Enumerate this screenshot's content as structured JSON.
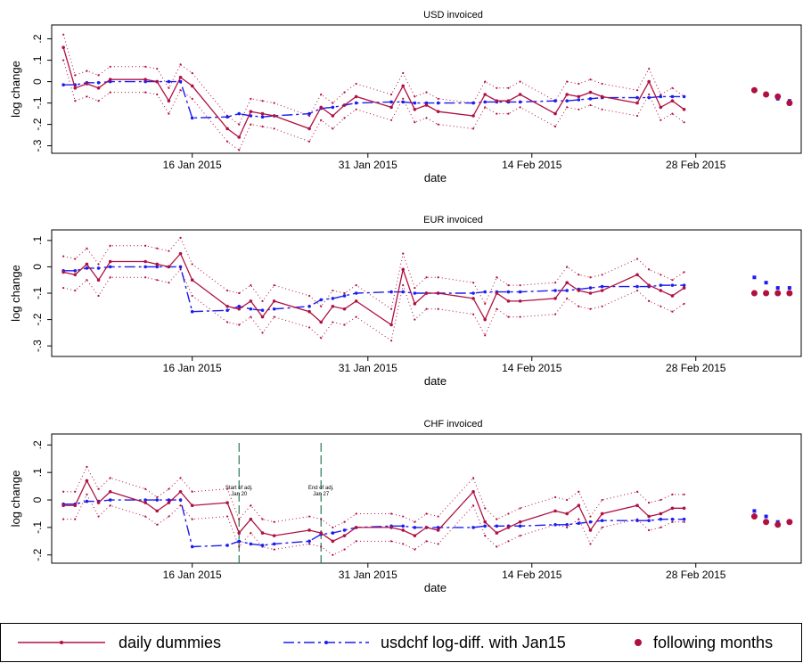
{
  "chart_data": {
    "type": "line",
    "xlabel": "date",
    "ylabel": "log change",
    "x": [
      "2015-01-05",
      "2015-01-06",
      "2015-01-07",
      "2015-01-08",
      "2015-01-09",
      "2015-01-12",
      "2015-01-13",
      "2015-01-14",
      "2015-01-15",
      "2015-01-16",
      "2015-01-19",
      "2015-01-20",
      "2015-01-21",
      "2015-01-22",
      "2015-01-23",
      "2015-01-26",
      "2015-01-27",
      "2015-01-28",
      "2015-01-29",
      "2015-01-30",
      "2015-02-02",
      "2015-02-03",
      "2015-02-04",
      "2015-02-05",
      "2015-02-06",
      "2015-02-09",
      "2015-02-10",
      "2015-02-11",
      "2015-02-12",
      "2015-02-13",
      "2015-02-16",
      "2015-02-17",
      "2015-02-18",
      "2015-02-19",
      "2015-02-20",
      "2015-02-23",
      "2015-02-24",
      "2015-02-25",
      "2015-02-26",
      "2015-02-27"
    ],
    "x_following": [
      "2015-03-05",
      "2015-03-06",
      "2015-03-07",
      "2015-03-08"
    ],
    "xlim": [
      "2015-01-04",
      "2015-03-09"
    ],
    "xticks": [
      {
        "value": "2015-01-16",
        "label": "16 Jan 2015"
      },
      {
        "value": "2015-01-31",
        "label": "31 Jan 2015"
      },
      {
        "value": "2015-02-14",
        "label": "14 Feb 2015"
      },
      {
        "value": "2015-02-28",
        "label": "28 Feb 2015"
      }
    ],
    "legend_position": "bottom",
    "series": [
      {
        "name": "daily dummies",
        "color": "#b01040"
      },
      {
        "name": "usdchf log-diff. with Jan15",
        "color": "#1c1cf0"
      },
      {
        "name": "following months",
        "color": "#b01040"
      }
    ],
    "panels": [
      {
        "title": "USD invoiced",
        "ylim": [
          -0.335,
          0.265
        ],
        "yticks": [
          {
            "value": 0.2,
            "label": ".2"
          },
          {
            "value": 0.1,
            "label": ".1"
          },
          0,
          {
            "value": -0.1,
            "label": "-.1"
          },
          {
            "value": -0.2,
            "label": "-.2"
          },
          {
            "value": -0.3,
            "label": "-.3"
          }
        ],
        "daily": [
          0.16,
          -0.03,
          -0.01,
          -0.03,
          0.01,
          0.01,
          0.0,
          -0.09,
          0.02,
          -0.02,
          -0.22,
          -0.26,
          -0.14,
          -0.15,
          -0.16,
          -0.22,
          -0.12,
          -0.16,
          -0.11,
          -0.07,
          -0.12,
          -0.02,
          -0.13,
          -0.11,
          -0.14,
          -0.16,
          -0.06,
          -0.09,
          -0.09,
          -0.06,
          -0.15,
          -0.06,
          -0.07,
          -0.05,
          -0.07,
          -0.1,
          0.0,
          -0.12,
          -0.09,
          -0.13
        ],
        "ci_upper": [
          0.22,
          0.03,
          0.05,
          0.03,
          0.07,
          0.07,
          0.06,
          -0.03,
          0.08,
          0.04,
          -0.16,
          -0.2,
          -0.08,
          -0.09,
          -0.1,
          -0.16,
          -0.06,
          -0.1,
          -0.05,
          -0.01,
          -0.06,
          0.04,
          -0.07,
          -0.05,
          -0.08,
          -0.1,
          0.0,
          -0.03,
          -0.03,
          0.0,
          -0.09,
          0.0,
          -0.01,
          0.01,
          -0.01,
          -0.04,
          0.06,
          -0.06,
          -0.03,
          -0.07
        ],
        "ci_lower": [
          0.1,
          -0.09,
          -0.07,
          -0.09,
          -0.05,
          -0.05,
          -0.06,
          -0.15,
          -0.04,
          -0.08,
          -0.28,
          -0.32,
          -0.2,
          -0.21,
          -0.22,
          -0.28,
          -0.18,
          -0.22,
          -0.17,
          -0.13,
          -0.18,
          -0.08,
          -0.19,
          -0.17,
          -0.2,
          -0.22,
          -0.12,
          -0.15,
          -0.15,
          -0.12,
          -0.21,
          -0.12,
          -0.13,
          -0.11,
          -0.13,
          -0.16,
          -0.06,
          -0.18,
          -0.15,
          -0.19
        ],
        "usdchf": [
          -0.015,
          -0.015,
          -0.005,
          -0.005,
          0.0,
          0.0,
          0.0,
          0.0,
          0.0,
          -0.17,
          -0.165,
          -0.15,
          -0.16,
          -0.165,
          -0.16,
          -0.15,
          -0.125,
          -0.12,
          -0.11,
          -0.1,
          -0.095,
          -0.095,
          -0.1,
          -0.1,
          -0.1,
          -0.1,
          -0.095,
          -0.095,
          -0.095,
          -0.095,
          -0.09,
          -0.09,
          -0.085,
          -0.08,
          -0.075,
          -0.075,
          -0.075,
          -0.07,
          -0.07,
          -0.07
        ],
        "following_daily": [
          -0.04,
          -0.06,
          -0.07,
          -0.1
        ],
        "following_usdchf": [
          -0.04,
          -0.06,
          -0.08,
          -0.09
        ]
      },
      {
        "title": "EUR invoiced",
        "ylim": [
          -0.34,
          0.14
        ],
        "yticks": [
          {
            "value": 0.1,
            "label": ".1"
          },
          0,
          {
            "value": -0.1,
            "label": "-.1"
          },
          {
            "value": -0.2,
            "label": "-.2"
          },
          {
            "value": -0.3,
            "label": "-.3"
          }
        ],
        "daily": [
          -0.02,
          -0.03,
          0.01,
          -0.05,
          0.02,
          0.02,
          0.01,
          0.0,
          0.05,
          -0.05,
          -0.15,
          -0.16,
          -0.13,
          -0.19,
          -0.13,
          -0.17,
          -0.21,
          -0.15,
          -0.16,
          -0.13,
          -0.22,
          -0.01,
          -0.14,
          -0.1,
          -0.1,
          -0.12,
          -0.2,
          -0.1,
          -0.13,
          -0.13,
          -0.12,
          -0.06,
          -0.09,
          -0.1,
          -0.09,
          -0.03,
          -0.07,
          -0.09,
          -0.11,
          -0.08
        ],
        "ci_upper": [
          0.04,
          0.03,
          0.07,
          0.01,
          0.08,
          0.08,
          0.07,
          0.06,
          0.11,
          0.01,
          -0.09,
          -0.1,
          -0.07,
          -0.13,
          -0.07,
          -0.11,
          -0.15,
          -0.09,
          -0.1,
          -0.07,
          -0.16,
          0.05,
          -0.08,
          -0.04,
          -0.04,
          -0.06,
          -0.14,
          -0.04,
          -0.07,
          -0.07,
          -0.06,
          0.0,
          -0.03,
          -0.04,
          -0.03,
          0.03,
          -0.01,
          -0.03,
          -0.05,
          -0.02
        ],
        "ci_lower": [
          -0.08,
          -0.09,
          -0.05,
          -0.11,
          -0.04,
          -0.04,
          -0.05,
          -0.06,
          -0.01,
          -0.11,
          -0.21,
          -0.22,
          -0.19,
          -0.25,
          -0.19,
          -0.23,
          -0.27,
          -0.21,
          -0.22,
          -0.19,
          -0.28,
          -0.07,
          -0.2,
          -0.16,
          -0.16,
          -0.18,
          -0.26,
          -0.16,
          -0.19,
          -0.19,
          -0.18,
          -0.12,
          -0.15,
          -0.16,
          -0.15,
          -0.09,
          -0.13,
          -0.15,
          -0.17,
          -0.14
        ],
        "usdchf": [
          -0.015,
          -0.015,
          -0.005,
          -0.005,
          0.0,
          0.0,
          0.0,
          0.0,
          0.0,
          -0.17,
          -0.165,
          -0.15,
          -0.16,
          -0.165,
          -0.16,
          -0.15,
          -0.125,
          -0.12,
          -0.11,
          -0.1,
          -0.095,
          -0.095,
          -0.1,
          -0.1,
          -0.1,
          -0.1,
          -0.095,
          -0.095,
          -0.095,
          -0.095,
          -0.09,
          -0.09,
          -0.085,
          -0.08,
          -0.075,
          -0.075,
          -0.075,
          -0.07,
          -0.07,
          -0.07
        ],
        "following_daily": [
          -0.1,
          -0.1,
          -0.1,
          -0.1
        ],
        "following_usdchf": [
          -0.04,
          -0.06,
          -0.08,
          -0.08
        ]
      },
      {
        "title": "CHF invoiced",
        "ylim": [
          -0.23,
          0.24
        ],
        "yticks": [
          {
            "value": 0.2,
            "label": ".2"
          },
          {
            "value": 0.1,
            "label": ".1"
          },
          0,
          {
            "value": -0.1,
            "label": "-.1"
          },
          {
            "value": -0.2,
            "label": "-.2"
          }
        ],
        "daily": [
          -0.02,
          -0.02,
          0.07,
          -0.01,
          0.03,
          -0.01,
          -0.04,
          -0.01,
          0.03,
          -0.02,
          -0.01,
          -0.12,
          -0.07,
          -0.12,
          -0.13,
          -0.11,
          -0.12,
          -0.15,
          -0.13,
          -0.1,
          -0.1,
          -0.11,
          -0.13,
          -0.1,
          -0.11,
          0.03,
          -0.08,
          -0.12,
          -0.1,
          -0.08,
          -0.04,
          -0.05,
          -0.02,
          -0.11,
          -0.05,
          -0.02,
          -0.06,
          -0.05,
          -0.03,
          -0.03
        ],
        "ci_upper": [
          0.03,
          0.03,
          0.12,
          0.04,
          0.08,
          0.04,
          0.01,
          0.04,
          0.08,
          0.03,
          0.04,
          -0.07,
          -0.02,
          -0.07,
          -0.08,
          -0.06,
          -0.07,
          -0.1,
          -0.08,
          -0.05,
          -0.05,
          -0.06,
          -0.08,
          -0.05,
          -0.06,
          0.08,
          -0.03,
          -0.07,
          -0.05,
          -0.03,
          0.01,
          0.0,
          0.03,
          -0.06,
          0.0,
          0.03,
          -0.01,
          0.0,
          0.02,
          0.02
        ],
        "ci_lower": [
          -0.07,
          -0.07,
          0.02,
          -0.06,
          -0.02,
          -0.06,
          -0.09,
          -0.06,
          -0.02,
          -0.07,
          -0.06,
          -0.17,
          -0.12,
          -0.17,
          -0.18,
          -0.16,
          -0.17,
          -0.2,
          -0.18,
          -0.15,
          -0.15,
          -0.16,
          -0.18,
          -0.15,
          -0.16,
          -0.02,
          -0.13,
          -0.17,
          -0.15,
          -0.13,
          -0.09,
          -0.1,
          -0.07,
          -0.16,
          -0.1,
          -0.07,
          -0.11,
          -0.1,
          -0.08,
          -0.08
        ],
        "usdchf": [
          -0.015,
          -0.015,
          -0.005,
          -0.005,
          0.0,
          0.0,
          0.0,
          0.0,
          0.0,
          -0.17,
          -0.165,
          -0.15,
          -0.16,
          -0.165,
          -0.16,
          -0.15,
          -0.125,
          -0.12,
          -0.11,
          -0.1,
          -0.095,
          -0.095,
          -0.1,
          -0.1,
          -0.1,
          -0.1,
          -0.095,
          -0.095,
          -0.095,
          -0.095,
          -0.09,
          -0.09,
          -0.085,
          -0.08,
          -0.075,
          -0.075,
          -0.075,
          -0.07,
          -0.07,
          -0.07
        ],
        "following_daily": [
          -0.06,
          -0.08,
          -0.09,
          -0.08
        ],
        "following_usdchf": [
          -0.04,
          -0.06,
          -0.08,
          -0.08
        ],
        "vlines": [
          {
            "x": "2015-01-20",
            "label": [
              "Start of adj.",
              "Jan 20"
            ],
            "color": "#2a7a55"
          },
          {
            "x": "2015-01-27",
            "label": [
              "End of adj.",
              "Jan 27"
            ],
            "color": "#2a7a55"
          }
        ]
      }
    ]
  }
}
